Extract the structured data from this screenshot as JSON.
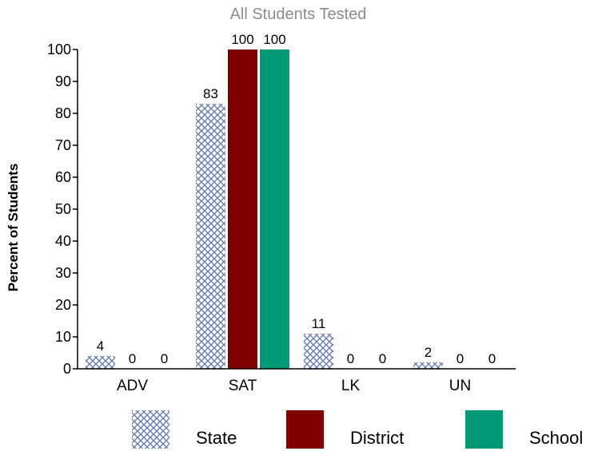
{
  "chart_data": {
    "type": "bar",
    "subtitle": "All Students Tested",
    "ylabel": "Percent of Students",
    "xlabel": "",
    "ylim": [
      0,
      100
    ],
    "yticks": [
      0,
      10,
      20,
      30,
      40,
      50,
      60,
      70,
      80,
      90,
      100
    ],
    "categories": [
      "ADV",
      "SAT",
      "LK",
      "UN"
    ],
    "series": [
      {
        "name": "State",
        "values": [
          4,
          83,
          11,
          2
        ],
        "color": "#6b7fb5",
        "fill": "crosshatch"
      },
      {
        "name": "District",
        "values": [
          0,
          100,
          0,
          0
        ],
        "color": "#800000"
      },
      {
        "name": "School",
        "values": [
          0,
          100,
          0,
          0
        ],
        "color": "#009975"
      }
    ],
    "legend_position": "bottom",
    "grid": false
  }
}
